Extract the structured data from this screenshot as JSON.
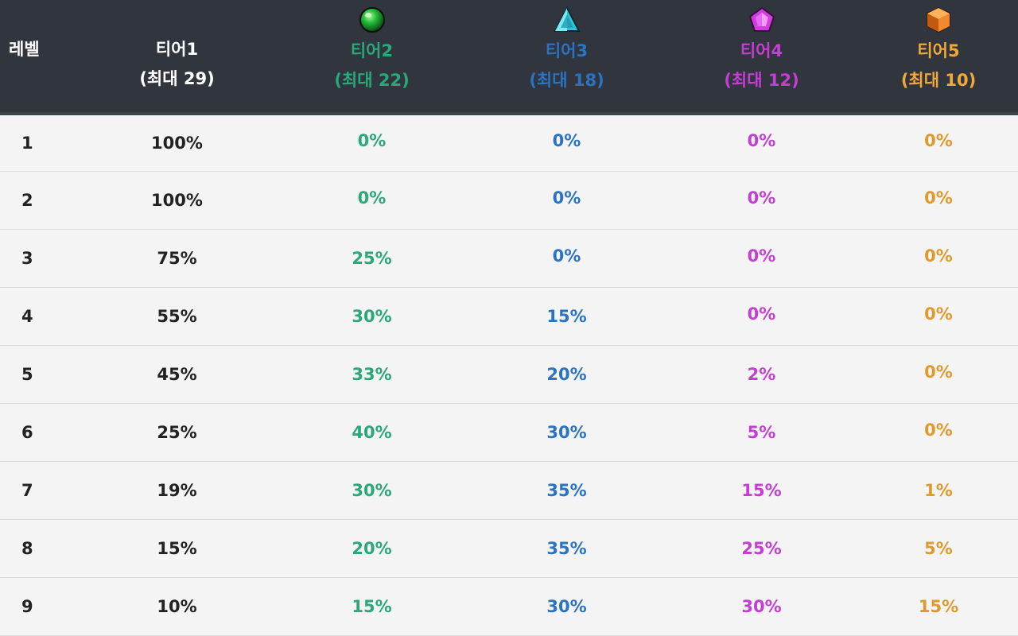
{
  "header": {
    "level_label": "레벨",
    "tiers": [
      {
        "name": "티어1",
        "max": "(최대 29)",
        "color": "#ffffff",
        "icon": null
      },
      {
        "name": "티어2",
        "max": "(최대 22)",
        "color": "#2aa87a",
        "icon": "green-orb-icon"
      },
      {
        "name": "티어3",
        "max": "(최대 18)",
        "color": "#2a73c2",
        "icon": "cyan-triangle-gem-icon"
      },
      {
        "name": "티어4",
        "max": "(최대 12)",
        "color": "#c43ed4",
        "icon": "magenta-pentagon-gem-icon"
      },
      {
        "name": "티어5",
        "max": "(최대 10)",
        "color": "#f3a93a",
        "icon": "orange-cube-gem-icon"
      }
    ]
  },
  "rows": [
    {
      "level": "1",
      "t1": "100%",
      "t2": "0%",
      "t3": "0%",
      "t4": "0%",
      "t5": "0%"
    },
    {
      "level": "2",
      "t1": "100%",
      "t2": "0%",
      "t3": "0%",
      "t4": "0%",
      "t5": "0%"
    },
    {
      "level": "3",
      "t1": "75%",
      "t2": "25%",
      "t3": "0%",
      "t4": "0%",
      "t5": "0%"
    },
    {
      "level": "4",
      "t1": "55%",
      "t2": "30%",
      "t3": "15%",
      "t4": "0%",
      "t5": "0%"
    },
    {
      "level": "5",
      "t1": "45%",
      "t2": "33%",
      "t3": "20%",
      "t4": "2%",
      "t5": "0%"
    },
    {
      "level": "6",
      "t1": "25%",
      "t2": "40%",
      "t3": "30%",
      "t4": "5%",
      "t5": "0%"
    },
    {
      "level": "7",
      "t1": "19%",
      "t2": "30%",
      "t3": "35%",
      "t4": "15%",
      "t5": "1%"
    },
    {
      "level": "8",
      "t1": "15%",
      "t2": "20%",
      "t3": "35%",
      "t4": "25%",
      "t5": "5%"
    },
    {
      "level": "9",
      "t1": "10%",
      "t2": "15%",
      "t3": "30%",
      "t4": "30%",
      "t5": "15%"
    }
  ],
  "colors": {
    "header_bg": "#31363e",
    "body_bg": "#f4f4f4",
    "zero_text": "#c7c7c7"
  }
}
